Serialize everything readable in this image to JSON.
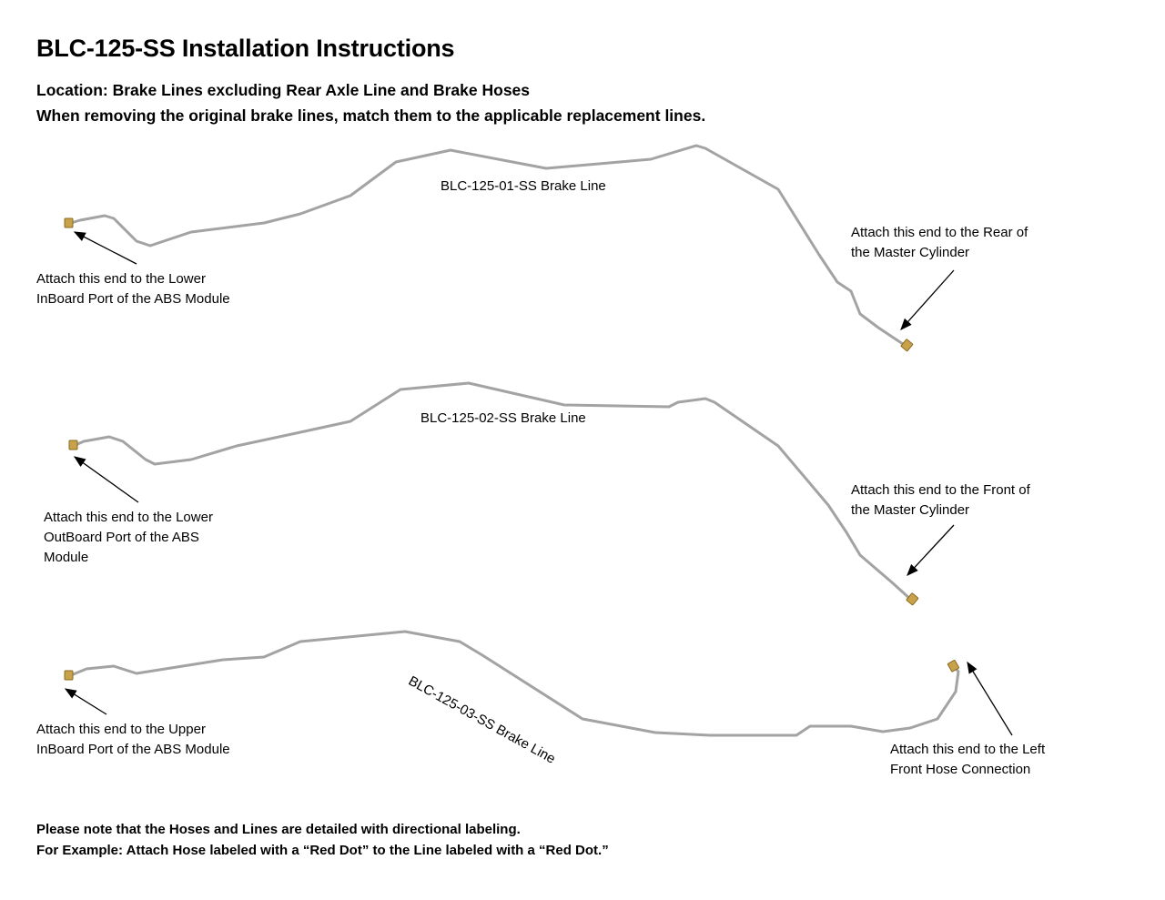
{
  "title": "BLC-125-SS Installation Instructions",
  "location": "Location: Brake Lines excluding Rear Axle Line and Brake Hoses",
  "instruction": "When removing the original brake lines, match them to the applicable replacement lines.",
  "lines": [
    {
      "name": "BLC-125-01-SS Brake Line",
      "left_label": [
        "Attach this end to the Lower",
        "InBoard Port of the ABS Module"
      ],
      "right_label": [
        "Attach this end to the Rear of",
        "the Master Cylinder"
      ]
    },
    {
      "name": "BLC-125-02-SS Brake Line",
      "left_label": [
        "Attach this end to the Lower",
        "OutBoard Port of the ABS",
        "Module"
      ],
      "right_label": [
        "Attach this end to the Front of",
        "the Master Cylinder"
      ]
    },
    {
      "name": "BLC-125-03-SS Brake Line",
      "left_label": [
        "Attach this end to the Upper",
        "InBoard Port of the ABS Module"
      ],
      "right_label": [
        "Attach this end to the Left",
        "Front Hose Connection"
      ]
    }
  ],
  "notes": [
    "Please note that the Hoses and Lines are detailed with directional labeling.",
    "For Example: Attach Hose labeled with a “Red Dot” to the Line labeled with a “Red Dot.”"
  ],
  "colors": {
    "line": "#9a9a9a",
    "fitting": "#c8a24a",
    "text": "#000000"
  }
}
